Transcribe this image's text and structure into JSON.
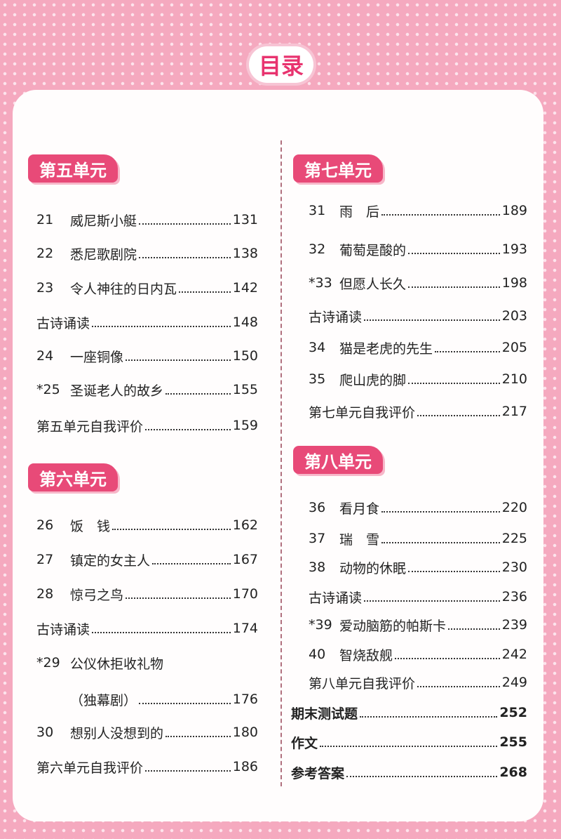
{
  "title": "目录",
  "left": {
    "sections": [
      {
        "heading": "第五单元",
        "entries": [
          {
            "num": "21",
            "title": "威尼斯小艇",
            "page": "131"
          },
          {
            "num": "22",
            "title": "悉尼歌剧院",
            "page": "138"
          },
          {
            "num": "23",
            "title": "令人神往的日内瓦",
            "page": "142"
          },
          {
            "title": "古诗诵读",
            "page": "148"
          },
          {
            "num": "24",
            "title": "一座铜像",
            "page": "150"
          },
          {
            "num": "*25",
            "title": "圣诞老人的故乡",
            "page": "155"
          },
          {
            "title": "第五单元自我评价",
            "page": "159"
          }
        ]
      },
      {
        "heading": "第六单元",
        "entries": [
          {
            "num": "26",
            "title": "饭　钱",
            "page": "162"
          },
          {
            "num": "27",
            "title": "镇定的女主人",
            "page": "167"
          },
          {
            "num": "28",
            "title": "惊弓之鸟",
            "page": "170"
          },
          {
            "title": "古诗诵读",
            "page": "174"
          },
          {
            "num": "*29",
            "title": "公仪休拒收礼物"
          },
          {
            "title": "（独幕剧）",
            "page": "176"
          },
          {
            "num": "30",
            "title": "想别人没想到的",
            "page": "180"
          },
          {
            "title": "第六单元自我评价",
            "page": "186"
          }
        ]
      }
    ]
  },
  "right": {
    "sections": [
      {
        "heading": "第七单元",
        "entries": [
          {
            "num": "31",
            "title": "雨　后",
            "page": "189"
          },
          {
            "num": "32",
            "title": "葡萄是酸的",
            "page": "193"
          },
          {
            "num": "*33",
            "title": "但愿人长久",
            "page": "198"
          },
          {
            "title": "古诗诵读",
            "page": "203"
          },
          {
            "num": "34",
            "title": "猫是老虎的先生",
            "page": "205"
          },
          {
            "num": "35",
            "title": "爬山虎的脚",
            "page": "210"
          },
          {
            "title": "第七单元自我评价",
            "page": "217"
          }
        ]
      },
      {
        "heading": "第八单元",
        "entries": [
          {
            "num": "36",
            "title": "看月食",
            "page": "220"
          },
          {
            "num": "37",
            "title": "瑞　雪",
            "page": "225"
          },
          {
            "num": "38",
            "title": "动物的休眠",
            "page": "230"
          },
          {
            "title": "古诗诵读",
            "page": "236"
          },
          {
            "num": "*39",
            "title": "爱动脑筋的帕斯卡",
            "page": "239"
          },
          {
            "num": "40",
            "title": "智烧敌舰",
            "page": "242"
          },
          {
            "title": "第八单元自我评价",
            "page": "249"
          }
        ]
      }
    ],
    "extras": [
      {
        "title": "期末测试题",
        "page": "252"
      },
      {
        "title": "作文",
        "page": "255"
      },
      {
        "title": "参考答案",
        "page": "268"
      }
    ]
  }
}
